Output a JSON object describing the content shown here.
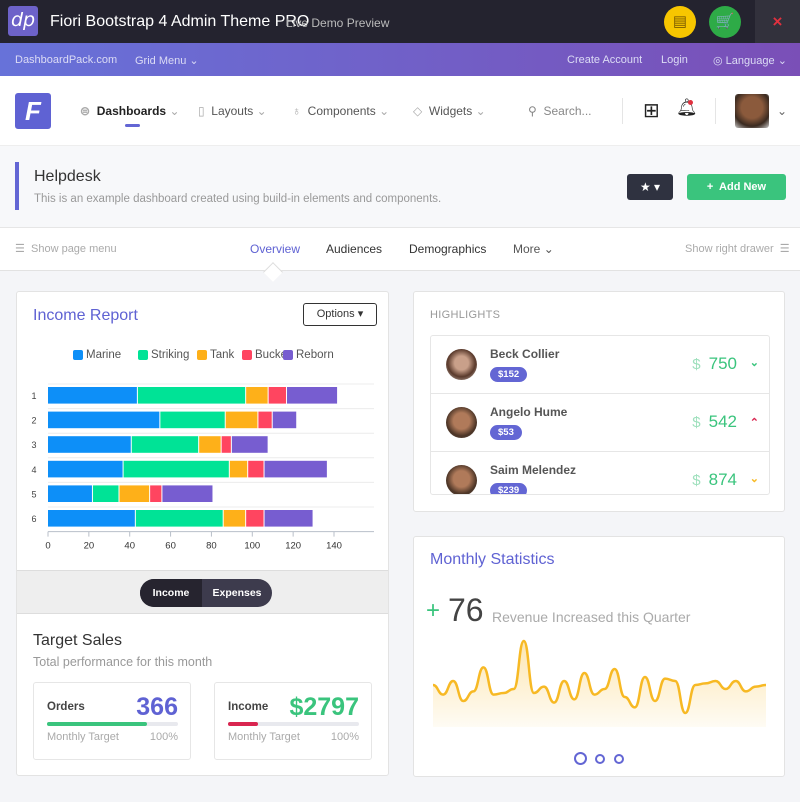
{
  "topbar": {
    "logo_text": "dp",
    "title": "Fiori Bootstrap 4 Admin Theme PRO",
    "subtitle": "Live Demo Preview",
    "close_icon": "×"
  },
  "purplebar": {
    "site": "DashboardPack.com",
    "grid_menu": "Grid Menu",
    "create_account": "Create Account",
    "login": "Login",
    "language": "Language"
  },
  "nav": {
    "logo_text": "F",
    "items": [
      {
        "label": "Dashboards",
        "active": true
      },
      {
        "label": "Layouts"
      },
      {
        "label": "Components"
      },
      {
        "label": "Widgets"
      }
    ],
    "search_placeholder": "Search..."
  },
  "header": {
    "title": "Helpdesk",
    "description": "This is an example dashboard created using build-in elements and components.",
    "add_label": "Add New"
  },
  "tabs": {
    "left": "Show page menu",
    "items": [
      "Overview",
      "Audiences",
      "Demographics",
      "More"
    ],
    "active": "Overview",
    "right": "Show right drawer"
  },
  "income": {
    "title": "Income Report",
    "options_label": "Options",
    "toggle": [
      "Income",
      "Expenses"
    ],
    "active_toggle": "Income"
  },
  "chart_data": {
    "type": "bar",
    "orientation": "horizontal",
    "stacked": true,
    "categories": [
      "1",
      "2",
      "3",
      "4",
      "5",
      "6"
    ],
    "series": [
      {
        "name": "Marine",
        "color": "#0d8ff8",
        "values": [
          44,
          55,
          41,
          37,
          22,
          43
        ]
      },
      {
        "name": "Striking",
        "color": "#00e396",
        "values": [
          53,
          32,
          33,
          52,
          13,
          43
        ]
      },
      {
        "name": "Tank",
        "color": "#feb019",
        "values": [
          11,
          16,
          11,
          9,
          15,
          11
        ]
      },
      {
        "name": "Bucket",
        "color": "#ff4560",
        "values": [
          9,
          7,
          5,
          8,
          6,
          9
        ]
      },
      {
        "name": "Reborn",
        "color": "#775dd0",
        "values": [
          25,
          12,
          18,
          31,
          25,
          24
        ]
      }
    ],
    "xticks": [
      "0",
      "20",
      "40",
      "60",
      "80",
      "100",
      "120",
      "140"
    ],
    "xlim": [
      0,
      158
    ],
    "legend": "top",
    "grid": "horizontal"
  },
  "target_sales": {
    "title": "Target Sales",
    "subtitle": "Total performance for this month",
    "cards": [
      {
        "label": "Orders",
        "value": "366",
        "value_color": "#5f62d3",
        "progress": 76,
        "bar_color": "#3ac47d",
        "target_label": "Monthly Target",
        "target_pct": "100%"
      },
      {
        "label": "Income",
        "value": "$2797",
        "value_color": "#3ac47d",
        "progress": 23,
        "bar_color": "#d92550",
        "target_label": "Monthly Target",
        "target_pct": "100%"
      }
    ]
  },
  "highlights": {
    "title": "HIGHLIGHTS",
    "items": [
      {
        "name": "Beck Collier",
        "badge": "$152",
        "currency": "$",
        "amount": "750",
        "trend": "down",
        "trend_color": "#3ac47d"
      },
      {
        "name": "Angelo Hume",
        "badge": "$53",
        "currency": "$",
        "amount": "542",
        "trend": "up",
        "trend_color": "#d92550"
      },
      {
        "name": "Saim Melendez",
        "badge": "$239",
        "currency": "$",
        "amount": "874",
        "trend": "down",
        "trend_color": "#f7b924"
      }
    ]
  },
  "monthly": {
    "title": "Monthly Statistics",
    "plus": "+",
    "value": "76",
    "caption": "Revenue Increased this Quarter",
    "sparkline": [
      40,
      28,
      45,
      20,
      32,
      62,
      28,
      30,
      35,
      95,
      30,
      38,
      18,
      45,
      22,
      55,
      28,
      35,
      60,
      25,
      12,
      50,
      20,
      48,
      45,
      5,
      40,
      42,
      45,
      35,
      45,
      32,
      38,
      40
    ],
    "carousel_pages": 3,
    "active_page": 1
  }
}
